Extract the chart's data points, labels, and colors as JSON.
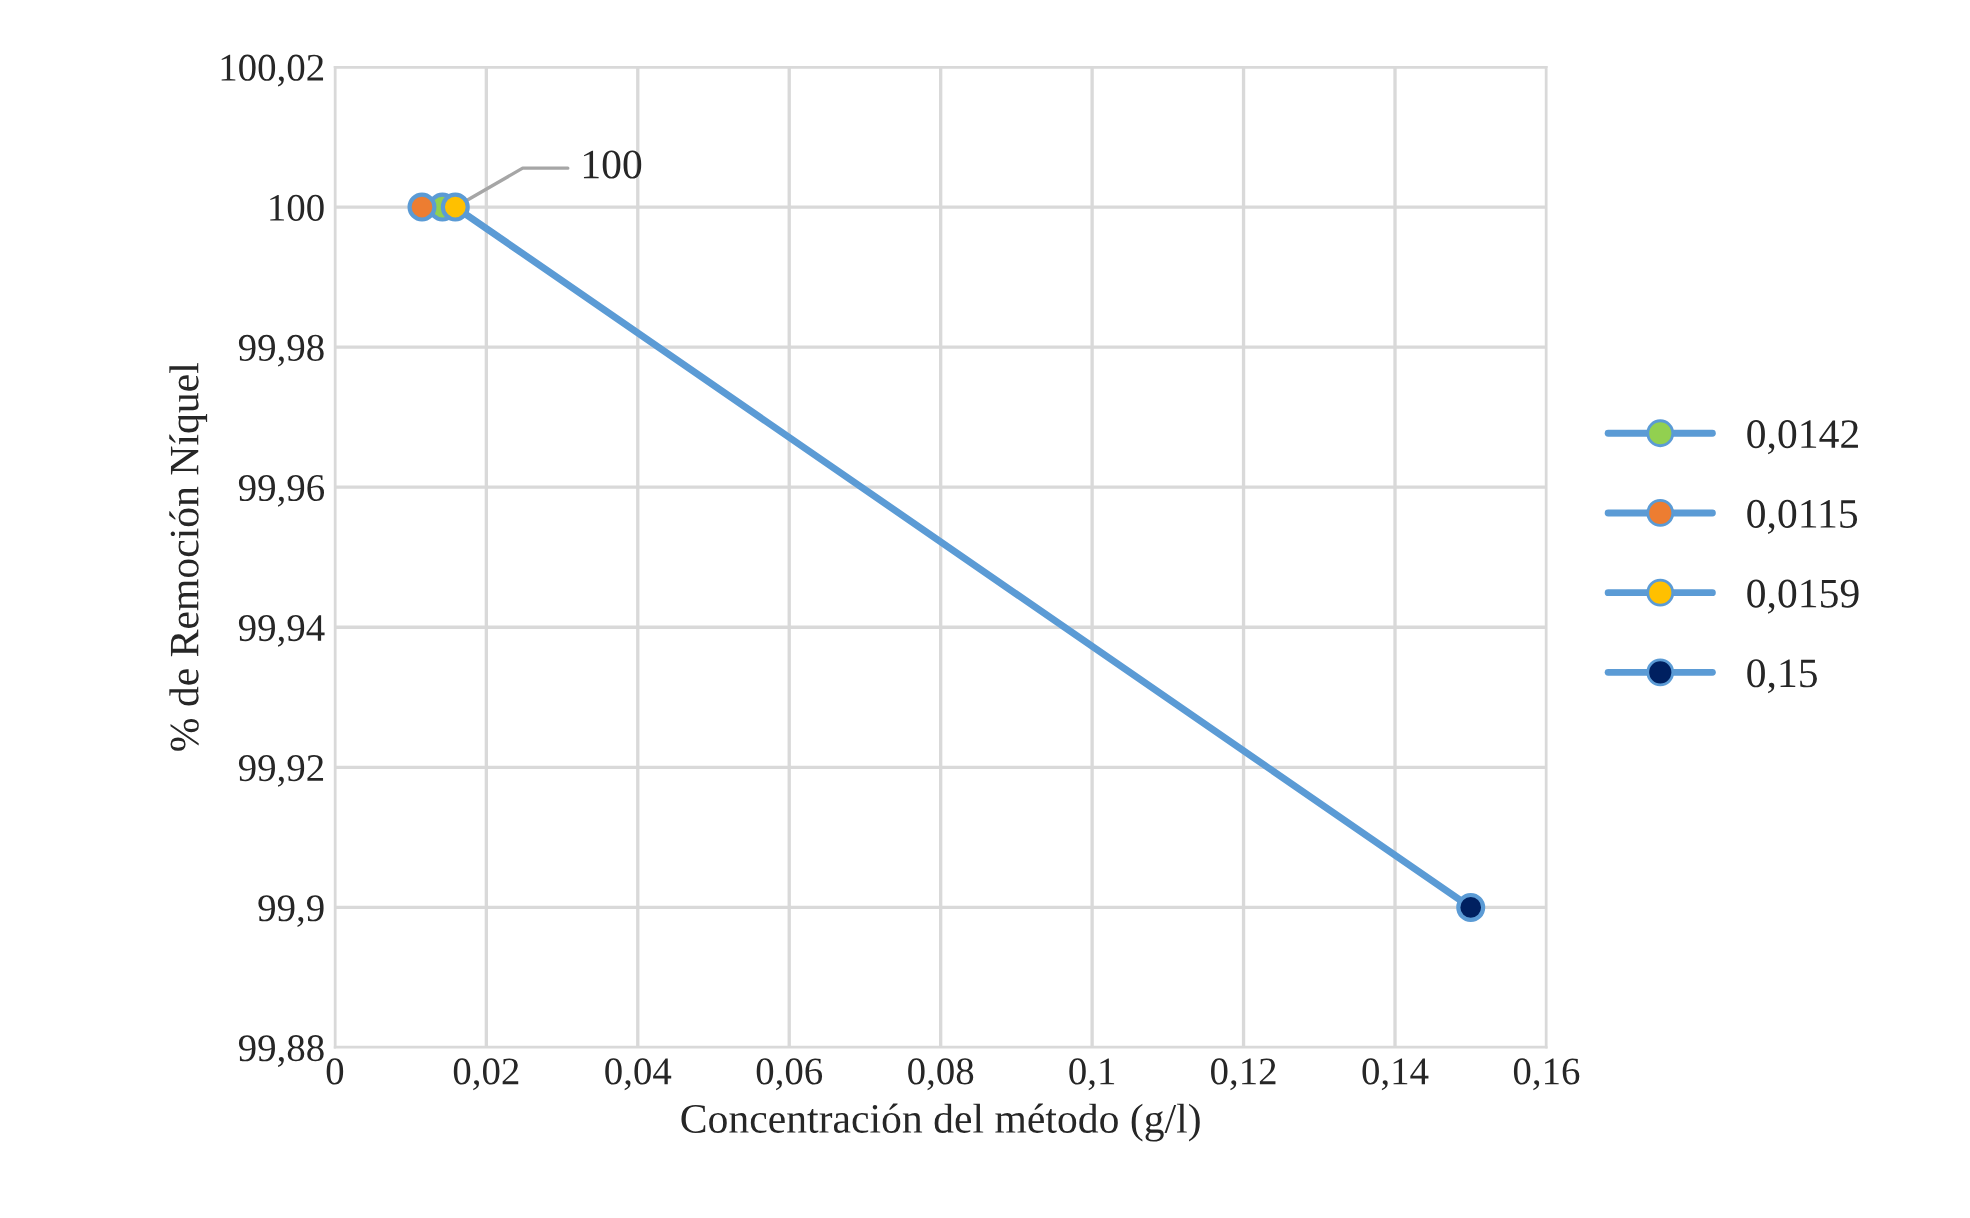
{
  "chart_data": {
    "type": "line",
    "xlabel": "Concentración del método (g/l)",
    "ylabel": "% de Remoción Níquel",
    "series": [
      {
        "color": "#5b9bd5",
        "x": [
          0.0142,
          0.0115,
          0.0159,
          0.15
        ],
        "values": [
          100,
          100,
          100,
          99.9
        ],
        "marker": "none"
      },
      {
        "type": "scatter",
        "name": "0,0142",
        "color": "#92d050",
        "x": [
          0.0142
        ],
        "values": [
          100
        ]
      },
      {
        "type": "scatter",
        "name": "0,0115",
        "color": "#ed7d31",
        "x": [
          0.0115
        ],
        "values": [
          100
        ]
      },
      {
        "type": "scatter",
        "name": "0,0159",
        "color": "#ffc000",
        "x": [
          0.0159
        ],
        "values": [
          100
        ]
      },
      {
        "type": "scatter",
        "name": "0,15",
        "color": "#002060",
        "x": [
          0.15
        ],
        "values": [
          99.9
        ]
      }
    ],
    "annotations": [
      {
        "text": "100",
        "x": 0.0159,
        "y": 100
      }
    ],
    "xlim": [
      0,
      0.16
    ],
    "xticks": [
      0,
      {
        "value": 0.02,
        "label": "0,02"
      },
      {
        "value": 0.04,
        "label": "0,04"
      },
      {
        "value": 0.06,
        "label": "0,06"
      },
      {
        "value": 0.08,
        "label": "0,08"
      },
      {
        "value": 0.1,
        "label": "0,1"
      },
      {
        "value": 0.12,
        "label": "0,12"
      },
      {
        "value": 0.14,
        "label": "0,14"
      },
      {
        "value": 0.16,
        "label": "0,16"
      }
    ],
    "ylim": [
      99.88,
      100.02
    ],
    "yticks": [
      {
        "value": 99.88,
        "label": "99,88"
      },
      {
        "value": 99.9,
        "label": "99,9"
      },
      {
        "value": 99.92,
        "label": "99,92"
      },
      {
        "value": 99.94,
        "label": "99,94"
      },
      {
        "value": 99.96,
        "label": "99,96"
      },
      {
        "value": 99.98,
        "label": "99,98"
      },
      100,
      {
        "value": 100.02,
        "label": "100,02"
      }
    ],
    "grid": true,
    "legend": "right",
    "marker": "circle"
  }
}
